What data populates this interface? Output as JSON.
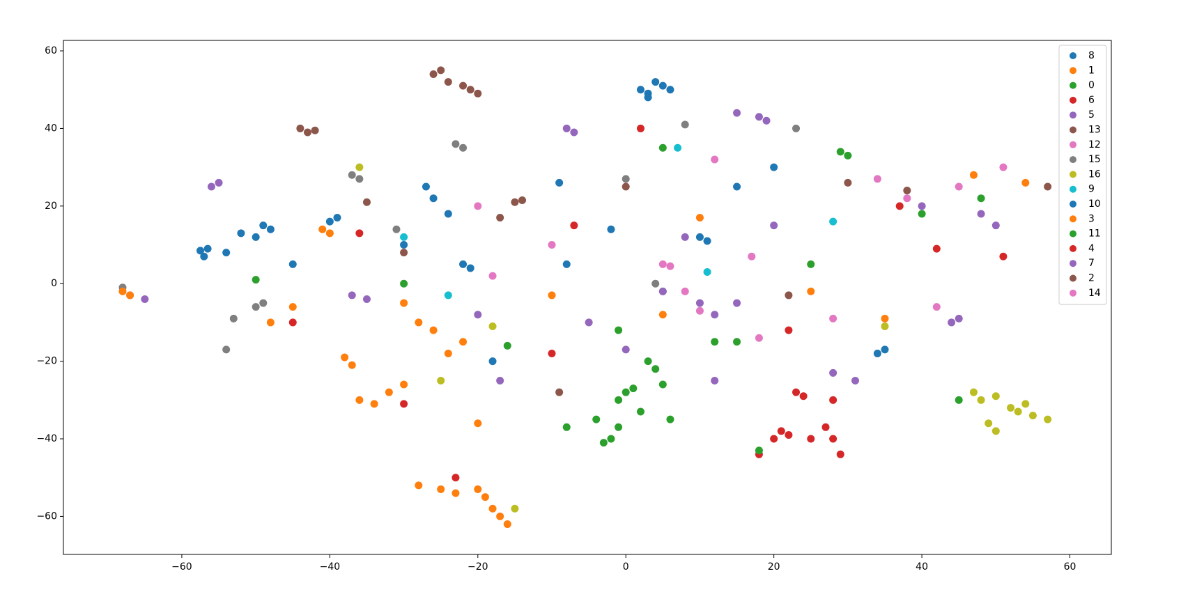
{
  "chart_data": {
    "type": "scatter",
    "legend": "upper right",
    "xlim": [
      -76,
      65.6
    ],
    "ylim": [
      -69.8,
      62.7
    ],
    "xticks": [
      {
        "value": -60,
        "label": "−60"
      },
      {
        "value": -40,
        "label": "−40"
      },
      {
        "value": -20,
        "label": "−20"
      },
      0,
      20,
      40,
      60
    ],
    "yticks": [
      {
        "value": -60,
        "label": "−60"
      },
      {
        "value": -40,
        "label": "−40"
      },
      {
        "value": -20,
        "label": "−20"
      },
      0,
      20,
      40,
      60
    ],
    "series": [
      {
        "name": "8",
        "color": "#1f77b4",
        "x": [
          -57,
          -57.5,
          -56.5,
          -52,
          -50,
          -49,
          -48,
          -26,
          -24,
          -27,
          5,
          4,
          6,
          3,
          -18,
          -40,
          -39,
          -9,
          -45,
          -54
        ],
        "y": [
          7,
          8.5,
          9,
          13,
          12,
          15,
          14,
          22,
          18,
          25,
          51,
          52,
          50,
          49,
          -20,
          16,
          17,
          26,
          5,
          8
        ]
      },
      {
        "name": "1",
        "color": "#ff7f0e",
        "x": [
          -18,
          -17,
          -19,
          -16,
          -20,
          -25,
          -28,
          -23,
          -32,
          -30,
          -36,
          -34,
          -22,
          -24,
          -20,
          -38,
          -37,
          -28,
          -26
        ],
        "y": [
          -58,
          -60,
          -55,
          -62,
          -53,
          -53,
          -52,
          -54,
          -28,
          -26,
          -30,
          -31,
          -15,
          -18,
          -36,
          -19,
          -21,
          -10,
          -12
        ]
      },
      {
        "name": "0",
        "color": "#2ca02c",
        "x": [
          0,
          1,
          -1,
          -2,
          -3,
          -1,
          5,
          6,
          3,
          4,
          -8,
          12,
          2,
          -4
        ],
        "y": [
          -28,
          -27,
          -30,
          -40,
          -41,
          -37,
          -26,
          -35,
          -20,
          -22,
          -37,
          -15,
          -33,
          -35
        ]
      },
      {
        "name": "6",
        "color": "#d62728",
        "x": [
          20,
          21,
          23,
          24,
          28,
          27,
          28,
          29,
          25,
          22,
          18,
          51
        ],
        "y": [
          -40,
          -38,
          -28,
          -29,
          -30,
          -37,
          -40,
          -44,
          -40,
          -39,
          -44,
          7
        ]
      },
      {
        "name": "5",
        "color": "#9467bd",
        "x": [
          -56,
          -55,
          -8,
          -7,
          15,
          18,
          19,
          44,
          45,
          28,
          -65,
          -67,
          -37,
          -35
        ],
        "y": [
          25,
          26,
          40,
          39,
          44,
          43,
          42,
          -10,
          -9,
          -23,
          -4,
          -3,
          -3,
          -4
        ]
      },
      {
        "name": "13",
        "color": "#8c564b",
        "x": [
          -24,
          -21,
          -25,
          -26,
          -22,
          -20,
          -43,
          -44,
          -42
        ],
        "y": [
          52,
          50,
          55,
          54,
          51,
          49,
          39,
          40,
          39.5
        ]
      },
      {
        "name": "12",
        "color": "#e377c2",
        "x": [
          51,
          34,
          10,
          42,
          5,
          6,
          -20,
          45,
          38
        ],
        "y": [
          30,
          27,
          -7,
          -6,
          5,
          4.5,
          20,
          25,
          22
        ]
      },
      {
        "name": "15",
        "color": "#7f7f7f",
        "x": [
          -23,
          -22,
          -37,
          -36,
          -68,
          -53,
          -54,
          -50,
          -49,
          -31,
          8,
          23,
          0,
          4,
          5
        ],
        "y": [
          36,
          35,
          28,
          27,
          -1,
          -9,
          -17,
          -6,
          -5,
          14,
          41,
          40,
          27,
          0,
          -2
        ]
      },
      {
        "name": "16",
        "color": "#bcbd22",
        "x": [
          47,
          48,
          50,
          52,
          54,
          55,
          57,
          49,
          50,
          53,
          -18,
          -15,
          -25,
          -36,
          35
        ],
        "y": [
          -28,
          -30,
          -29,
          -32,
          -31,
          -34,
          -35,
          -36,
          -38,
          -33,
          -11,
          -58,
          -25,
          30,
          -11
        ]
      },
      {
        "name": "9",
        "color": "#17becf",
        "x": [
          7,
          11,
          28,
          -24,
          -30
        ],
        "y": [
          35,
          3,
          16,
          -3,
          12
        ]
      },
      {
        "name": "10",
        "color": "#1f77b4",
        "x": [
          3,
          2,
          10,
          11,
          35,
          34,
          -30,
          -22,
          -21,
          20,
          -2,
          -8,
          15
        ],
        "y": [
          48,
          50,
          12,
          11,
          -17,
          -18,
          10,
          5,
          4,
          30,
          14,
          5,
          25
        ]
      },
      {
        "name": "3",
        "color": "#ff7f0e",
        "x": [
          -68,
          -67,
          -45,
          -40,
          -41,
          -10,
          5,
          25,
          35,
          47,
          54,
          -48,
          -30,
          10
        ],
        "y": [
          -2,
          -3,
          -6,
          13,
          14,
          -3,
          -8,
          -2,
          -9,
          28,
          26,
          -10,
          -5,
          17
        ]
      },
      {
        "name": "11",
        "color": "#2ca02c",
        "x": [
          29,
          30,
          45,
          48,
          18,
          -50,
          -30,
          25,
          5,
          15,
          -1,
          -16,
          40
        ],
        "y": [
          34,
          33,
          -30,
          22,
          -43,
          1,
          0,
          5,
          35,
          -15,
          -12,
          -16,
          18
        ]
      },
      {
        "name": "4",
        "color": "#d62728",
        "x": [
          -7,
          -10,
          -36,
          -45,
          42,
          -23,
          -30,
          22,
          2,
          37
        ],
        "y": [
          15,
          -18,
          13,
          -10,
          9,
          -50,
          -31,
          -12,
          40,
          20
        ]
      },
      {
        "name": "7",
        "color": "#9467bd",
        "x": [
          10,
          15,
          5,
          12,
          20,
          40,
          48,
          50,
          -20,
          -17,
          31,
          12,
          -5,
          0,
          8
        ],
        "y": [
          -5,
          -5,
          -2,
          -8,
          15,
          20,
          18,
          15,
          -8,
          -25,
          -25,
          -25,
          -10,
          -17,
          12
        ]
      },
      {
        "name": "2",
        "color": "#8c564b",
        "x": [
          -15,
          -14,
          -17,
          -30,
          0,
          -9,
          38,
          57,
          -35,
          22,
          30
        ],
        "y": [
          21,
          21.5,
          17,
          8,
          25,
          -28,
          24,
          25,
          21,
          -3,
          26
        ]
      },
      {
        "name": "14",
        "color": "#e377c2",
        "x": [
          -18,
          8,
          28,
          18,
          -10,
          12,
          17
        ],
        "y": [
          2,
          -2,
          -9,
          -14,
          10,
          32,
          7
        ]
      }
    ]
  }
}
